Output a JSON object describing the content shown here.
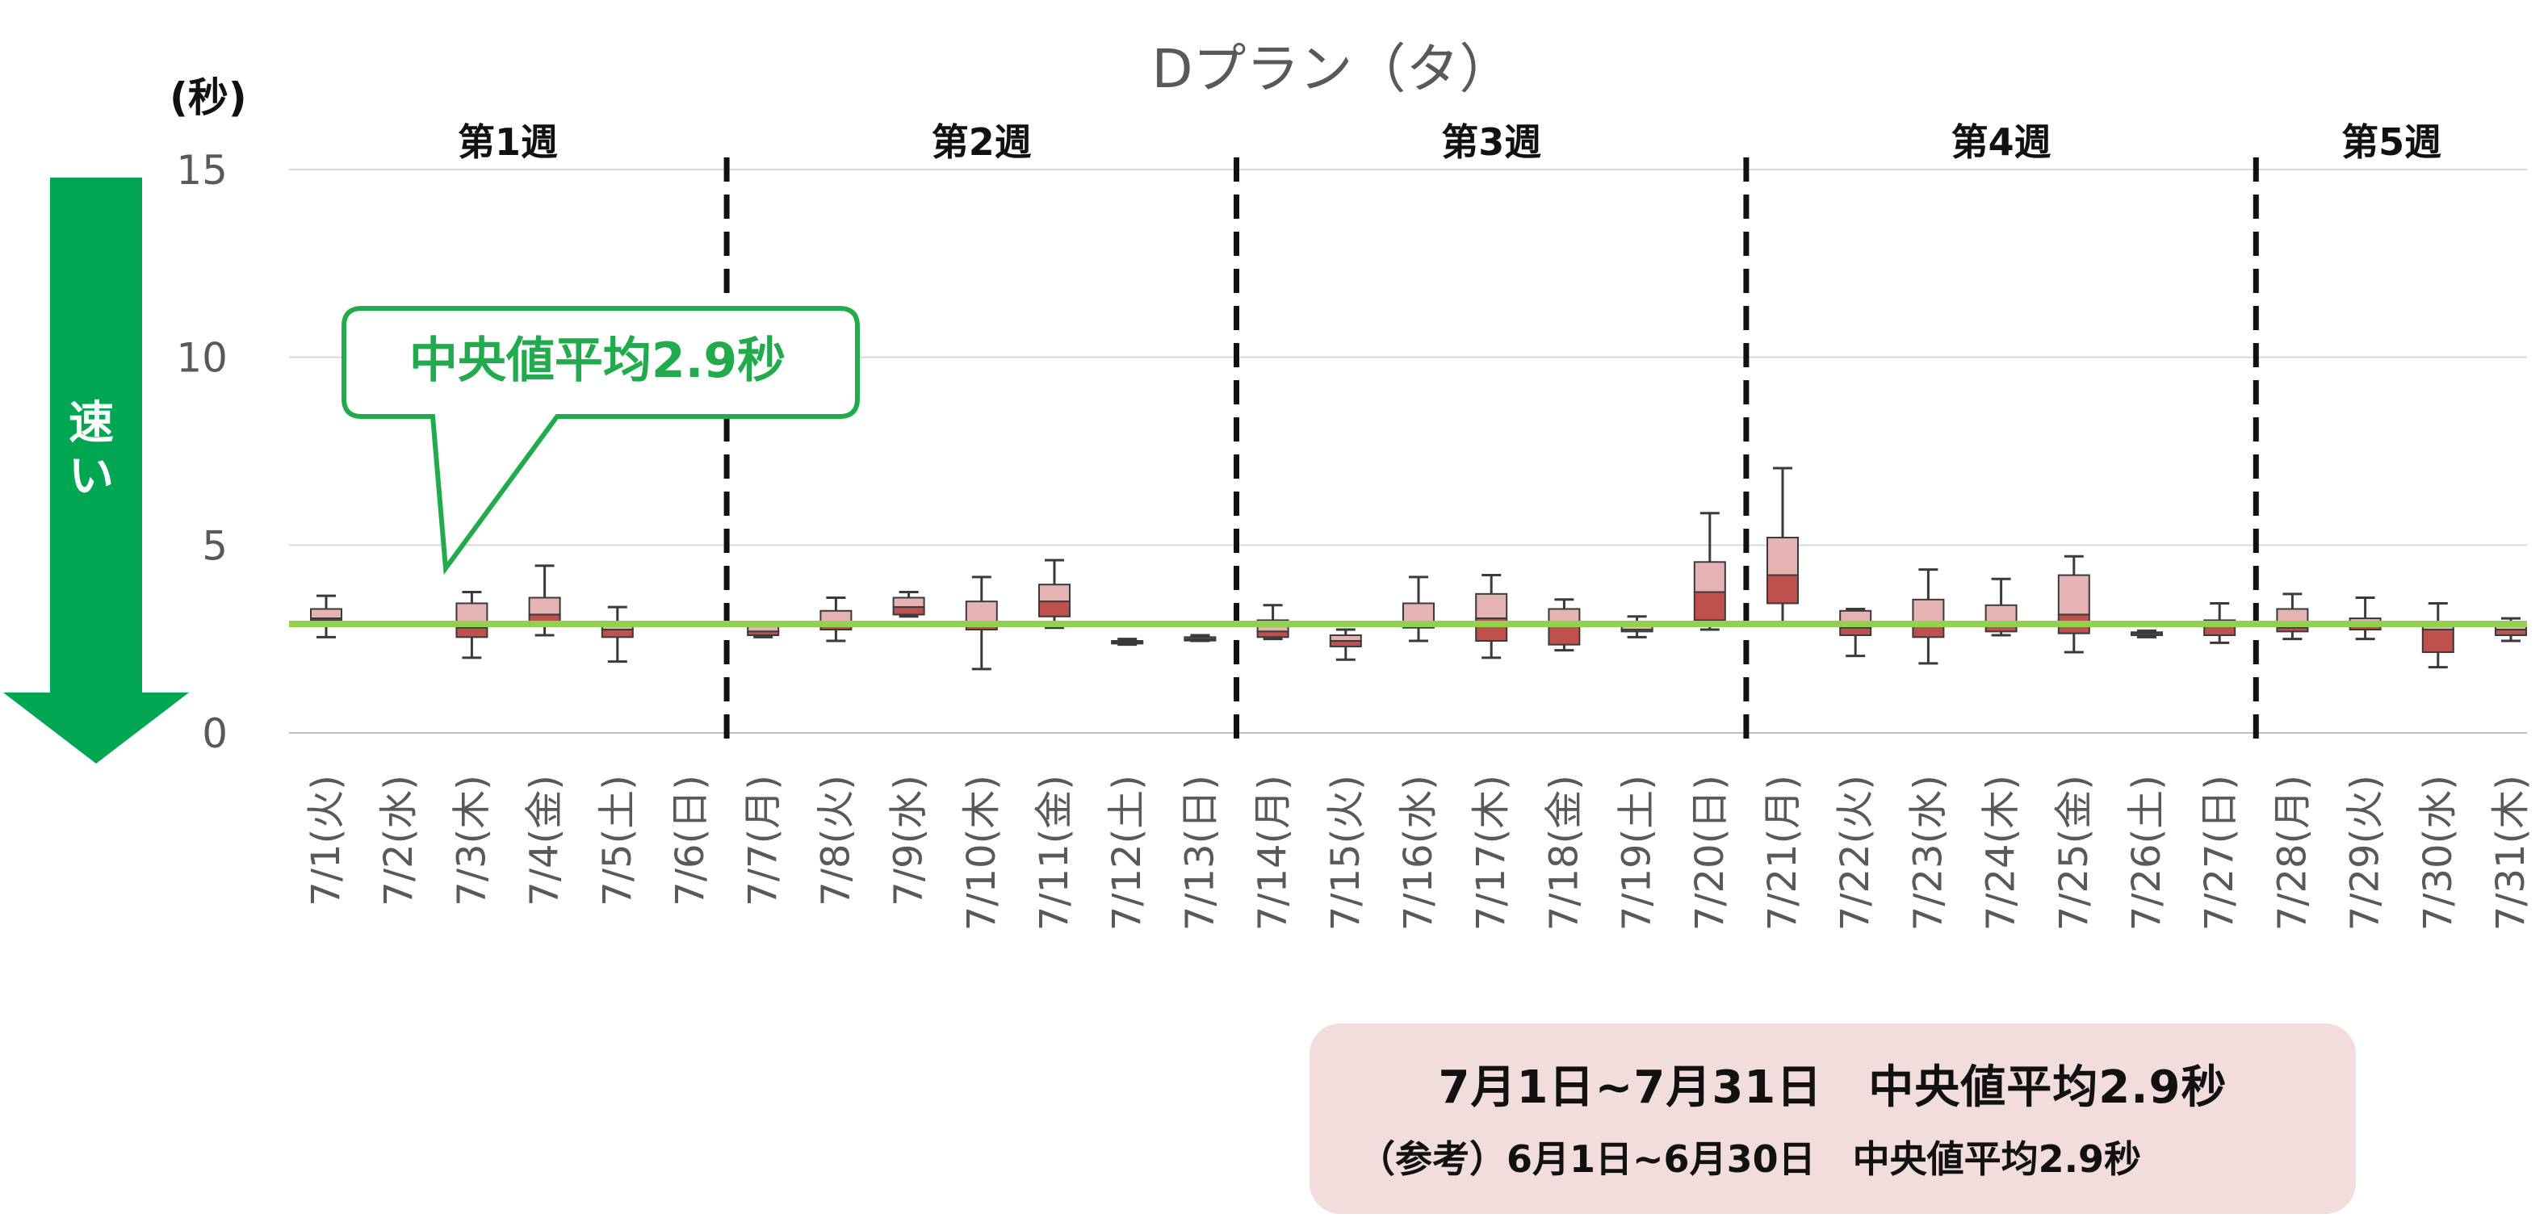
{
  "chart_data": {
    "type": "boxplot",
    "title": "Dプラン（タ）",
    "unit_label": "(秒)",
    "ylim": [
      0,
      15
    ],
    "yticks": [
      0,
      5,
      10,
      15
    ],
    "grid": true,
    "median_average_line": 2.9,
    "weeks": [
      {
        "label": "第1週",
        "start_index": 0,
        "end_index": 5
      },
      {
        "label": "第2週",
        "start_index": 6,
        "end_index": 12
      },
      {
        "label": "第3週",
        "start_index": 13,
        "end_index": 19
      },
      {
        "label": "第4週",
        "start_index": 20,
        "end_index": 26
      },
      {
        "label": "第5週",
        "start_index": 27,
        "end_index": 30
      }
    ],
    "categories": [
      "7/1(火)",
      "7/2(水)",
      "7/3(木)",
      "7/4(金)",
      "7/5(土)",
      "7/6(日)",
      "7/7(月)",
      "7/8(火)",
      "7/9(水)",
      "7/10(木)",
      "7/11(金)",
      "7/12(土)",
      "7/13(日)",
      "7/14(月)",
      "7/15(火)",
      "7/16(水)",
      "7/17(木)",
      "7/18(金)",
      "7/19(土)",
      "7/20(日)",
      "7/21(月)",
      "7/22(火)",
      "7/23(水)",
      "7/24(木)",
      "7/25(金)",
      "7/26(土)",
      "7/27(日)",
      "7/28(月)",
      "7/29(火)",
      "7/30(水)",
      "7/31(木)"
    ],
    "boxes": [
      {
        "min": 2.55,
        "q1": 3.0,
        "median": 3.05,
        "q3": 3.3,
        "max": 3.65
      },
      null,
      {
        "min": 2.0,
        "q1": 2.55,
        "median": 2.8,
        "q3": 3.45,
        "max": 3.75
      },
      {
        "min": 2.6,
        "q1": 2.9,
        "median": 3.15,
        "q3": 3.6,
        "max": 4.45
      },
      {
        "min": 1.9,
        "q1": 2.55,
        "median": 2.75,
        "q3": 2.95,
        "max": 3.35
      },
      null,
      {
        "min": 2.55,
        "q1": 2.6,
        "median": 2.7,
        "q3": 2.9,
        "max": 2.95
      },
      {
        "min": 2.45,
        "q1": 2.75,
        "median": 2.9,
        "q3": 3.25,
        "max": 3.6
      },
      {
        "min": 3.1,
        "q1": 3.15,
        "median": 3.35,
        "q3": 3.6,
        "max": 3.75
      },
      {
        "min": 1.7,
        "q1": 2.75,
        "median": 2.85,
        "q3": 3.5,
        "max": 4.15
      },
      {
        "min": 2.8,
        "q1": 3.1,
        "median": 3.5,
        "q3": 3.95,
        "max": 4.6
      },
      {
        "min": 2.35,
        "q1": 2.4,
        "median": 2.42,
        "q3": 2.45,
        "max": 2.5
      },
      {
        "min": 2.45,
        "q1": 2.48,
        "median": 2.5,
        "q3": 2.55,
        "max": 2.6
      },
      {
        "min": 2.5,
        "q1": 2.55,
        "median": 2.7,
        "q3": 3.0,
        "max": 3.4
      },
      {
        "min": 1.95,
        "q1": 2.3,
        "median": 2.45,
        "q3": 2.6,
        "max": 2.75
      },
      {
        "min": 2.45,
        "q1": 2.8,
        "median": 2.85,
        "q3": 3.45,
        "max": 4.15
      },
      {
        "min": 2.0,
        "q1": 2.45,
        "median": 3.05,
        "q3": 3.7,
        "max": 4.2
      },
      {
        "min": 2.2,
        "q1": 2.35,
        "median": 2.85,
        "q3": 3.3,
        "max": 3.55
      },
      {
        "min": 2.55,
        "q1": 2.7,
        "median": 2.75,
        "q3": 2.85,
        "max": 3.1
      },
      {
        "min": 2.75,
        "q1": 3.0,
        "median": 3.75,
        "q3": 4.55,
        "max": 5.85
      },
      {
        "min": 2.9,
        "q1": 3.45,
        "median": 4.2,
        "q3": 5.2,
        "max": 7.05
      },
      {
        "min": 2.05,
        "q1": 2.6,
        "median": 2.8,
        "q3": 3.25,
        "max": 3.3
      },
      {
        "min": 1.85,
        "q1": 2.55,
        "median": 2.85,
        "q3": 3.55,
        "max": 4.35
      },
      {
        "min": 2.6,
        "q1": 2.7,
        "median": 2.9,
        "q3": 3.4,
        "max": 4.1
      },
      {
        "min": 2.15,
        "q1": 2.65,
        "median": 3.15,
        "q3": 4.2,
        "max": 4.7
      },
      {
        "min": 2.55,
        "q1": 2.6,
        "median": 2.65,
        "q3": 2.68,
        "max": 2.72
      },
      {
        "min": 2.4,
        "q1": 2.6,
        "median": 2.85,
        "q3": 3.0,
        "max": 3.45
      },
      {
        "min": 2.5,
        "q1": 2.7,
        "median": 2.8,
        "q3": 3.3,
        "max": 3.7
      },
      {
        "min": 2.5,
        "q1": 2.75,
        "median": 2.95,
        "q3": 3.05,
        "max": 3.6
      },
      {
        "min": 1.75,
        "q1": 2.15,
        "median": 2.75,
        "q3": 2.85,
        "max": 3.45
      },
      {
        "min": 2.45,
        "q1": 2.6,
        "median": 2.75,
        "q3": 2.95,
        "max": 3.05
      }
    ]
  },
  "callout": {
    "text": "中央値平均2.9秒"
  },
  "speed_arrow": {
    "label": "速い"
  },
  "summary": {
    "line1": "7月1日~7月31日　中央値平均2.9秒",
    "line2": "（参考）6月1日~6月30日　中央値平均2.9秒"
  },
  "colors": {
    "box_upper": "#e6b3b3",
    "box_lower": "#c0504d",
    "box_border": "#3a3a3a",
    "average_line": "#92d050",
    "arrow": "#00a651",
    "callout_border": "#22ab4d",
    "gridline": "#d9d9d9",
    "week_divider": "#111111"
  }
}
